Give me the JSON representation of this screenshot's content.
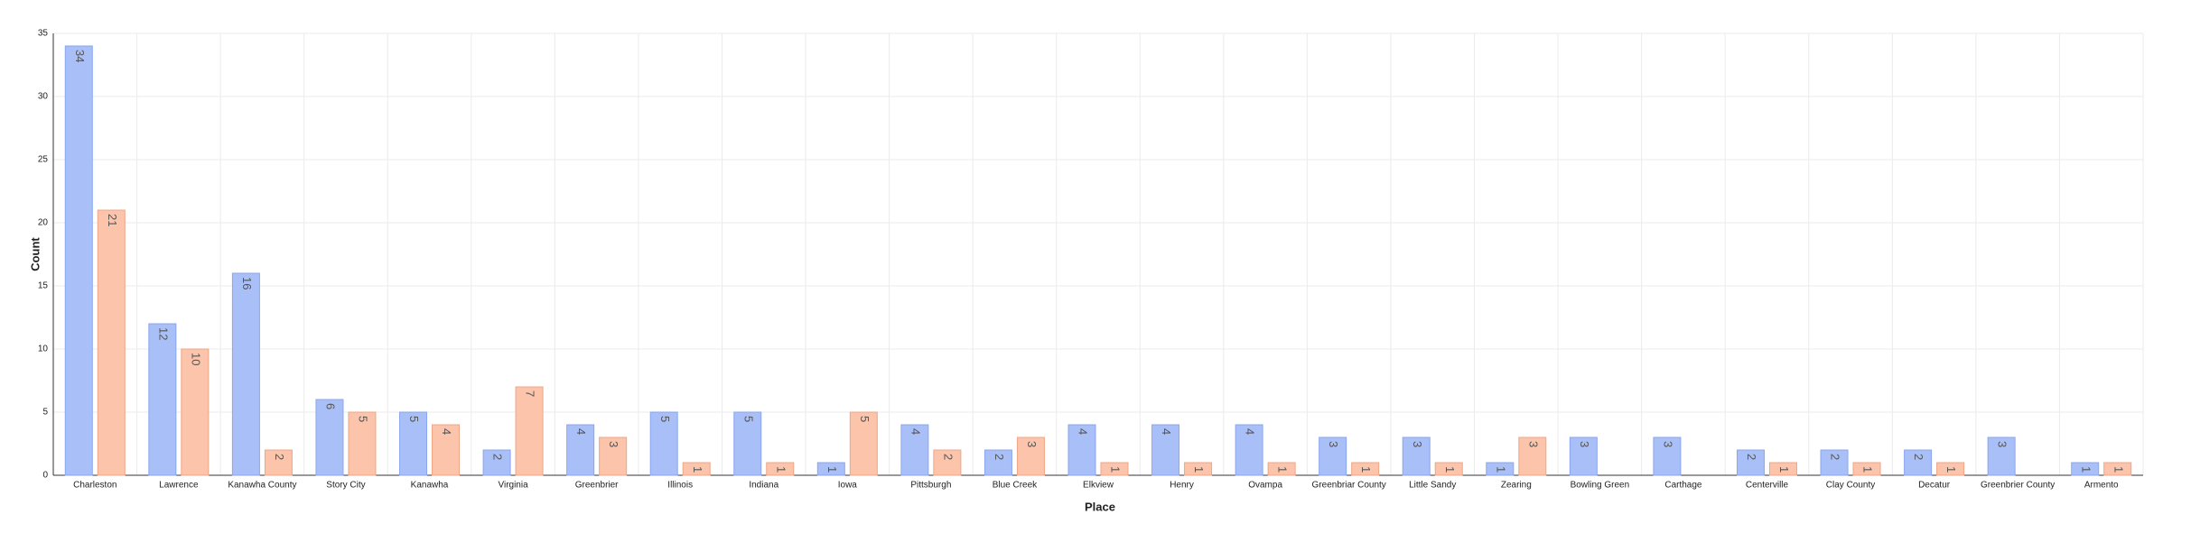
{
  "chart_data": {
    "type": "bar",
    "x_label": "Place",
    "y_label": "Count",
    "categories": [
      "Charleston",
      "Lawrence",
      "Kanawha County",
      "Story City",
      "Kanawha",
      "Virginia",
      "Greenbrier",
      "Illinois",
      "Indiana",
      "Iowa",
      "Pittsburgh",
      "Blue Creek",
      "Elkview",
      "Henry",
      "Ovampa",
      "Greenbriar County",
      "Little Sandy",
      "Zearing",
      "Bowling Green",
      "Carthage",
      "Centerville",
      "Clay County",
      "Decatur",
      "Greenbrier County",
      "Armento"
    ],
    "series": [
      {
        "color": "#a9bff8",
        "values": [
          34,
          12,
          16,
          6,
          5,
          2,
          4,
          5,
          5,
          1,
          4,
          2,
          4,
          4,
          4,
          3,
          3,
          1,
          3,
          3,
          2,
          2,
          2,
          3,
          1
        ]
      },
      {
        "color": "#fcc4aa",
        "values": [
          21,
          10,
          2,
          5,
          4,
          7,
          3,
          1,
          1,
          5,
          2,
          3,
          1,
          1,
          1,
          1,
          1,
          3,
          null,
          null,
          1,
          1,
          1,
          null,
          1
        ]
      }
    ],
    "ylim": [
      0,
      35
    ],
    "yticks": [
      0,
      5,
      10,
      15,
      20,
      25,
      30,
      35
    ],
    "grid": true
  }
}
